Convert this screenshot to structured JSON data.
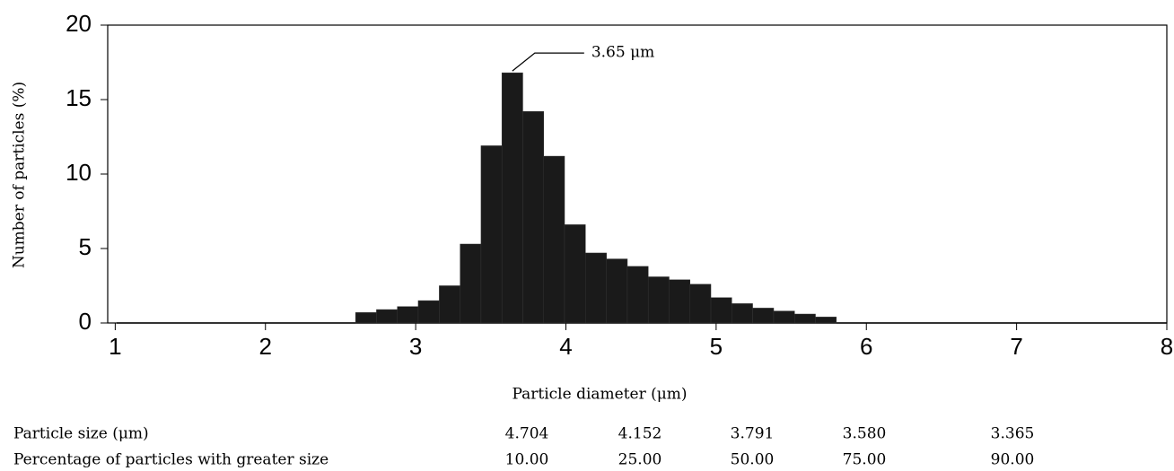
{
  "chart_data": {
    "type": "histogram",
    "ylabel": "Number of particles (%)",
    "xlabel": "Particle diameter (μm)",
    "annotation": "3.65 μm",
    "bins": [
      2.6,
      2.739,
      2.878,
      3.017,
      3.157,
      3.296,
      3.435,
      3.574,
      3.713,
      3.852,
      3.991,
      4.13,
      4.27,
      4.409,
      4.548,
      4.687,
      4.826,
      4.965,
      5.104,
      5.243,
      5.383,
      5.522,
      5.661,
      5.8
    ],
    "values": [
      0.7,
      0.9,
      1.1,
      1.5,
      2.5,
      5.3,
      11.9,
      16.8,
      14.2,
      11.2,
      6.6,
      4.7,
      4.3,
      3.8,
      3.1,
      2.9,
      2.6,
      1.7,
      1.3,
      1.0,
      0.8,
      0.6,
      0.4
    ],
    "color": "#1a1a1a",
    "xlim": [
      0.95,
      8
    ],
    "xticks": [
      1,
      2,
      3,
      4,
      5,
      6,
      7,
      8
    ],
    "ylim": [
      0,
      20
    ],
    "yticks": [
      0,
      5,
      10,
      15,
      20
    ]
  },
  "table": {
    "rows": [
      [
        "Particle size (μm)",
        "4.704",
        "4.152",
        "3.791",
        "3.580",
        "3.365"
      ],
      [
        "Percentage of particles with greater size",
        "10.00",
        "25.00",
        "50.00",
        "75.00",
        "90.00"
      ]
    ]
  }
}
